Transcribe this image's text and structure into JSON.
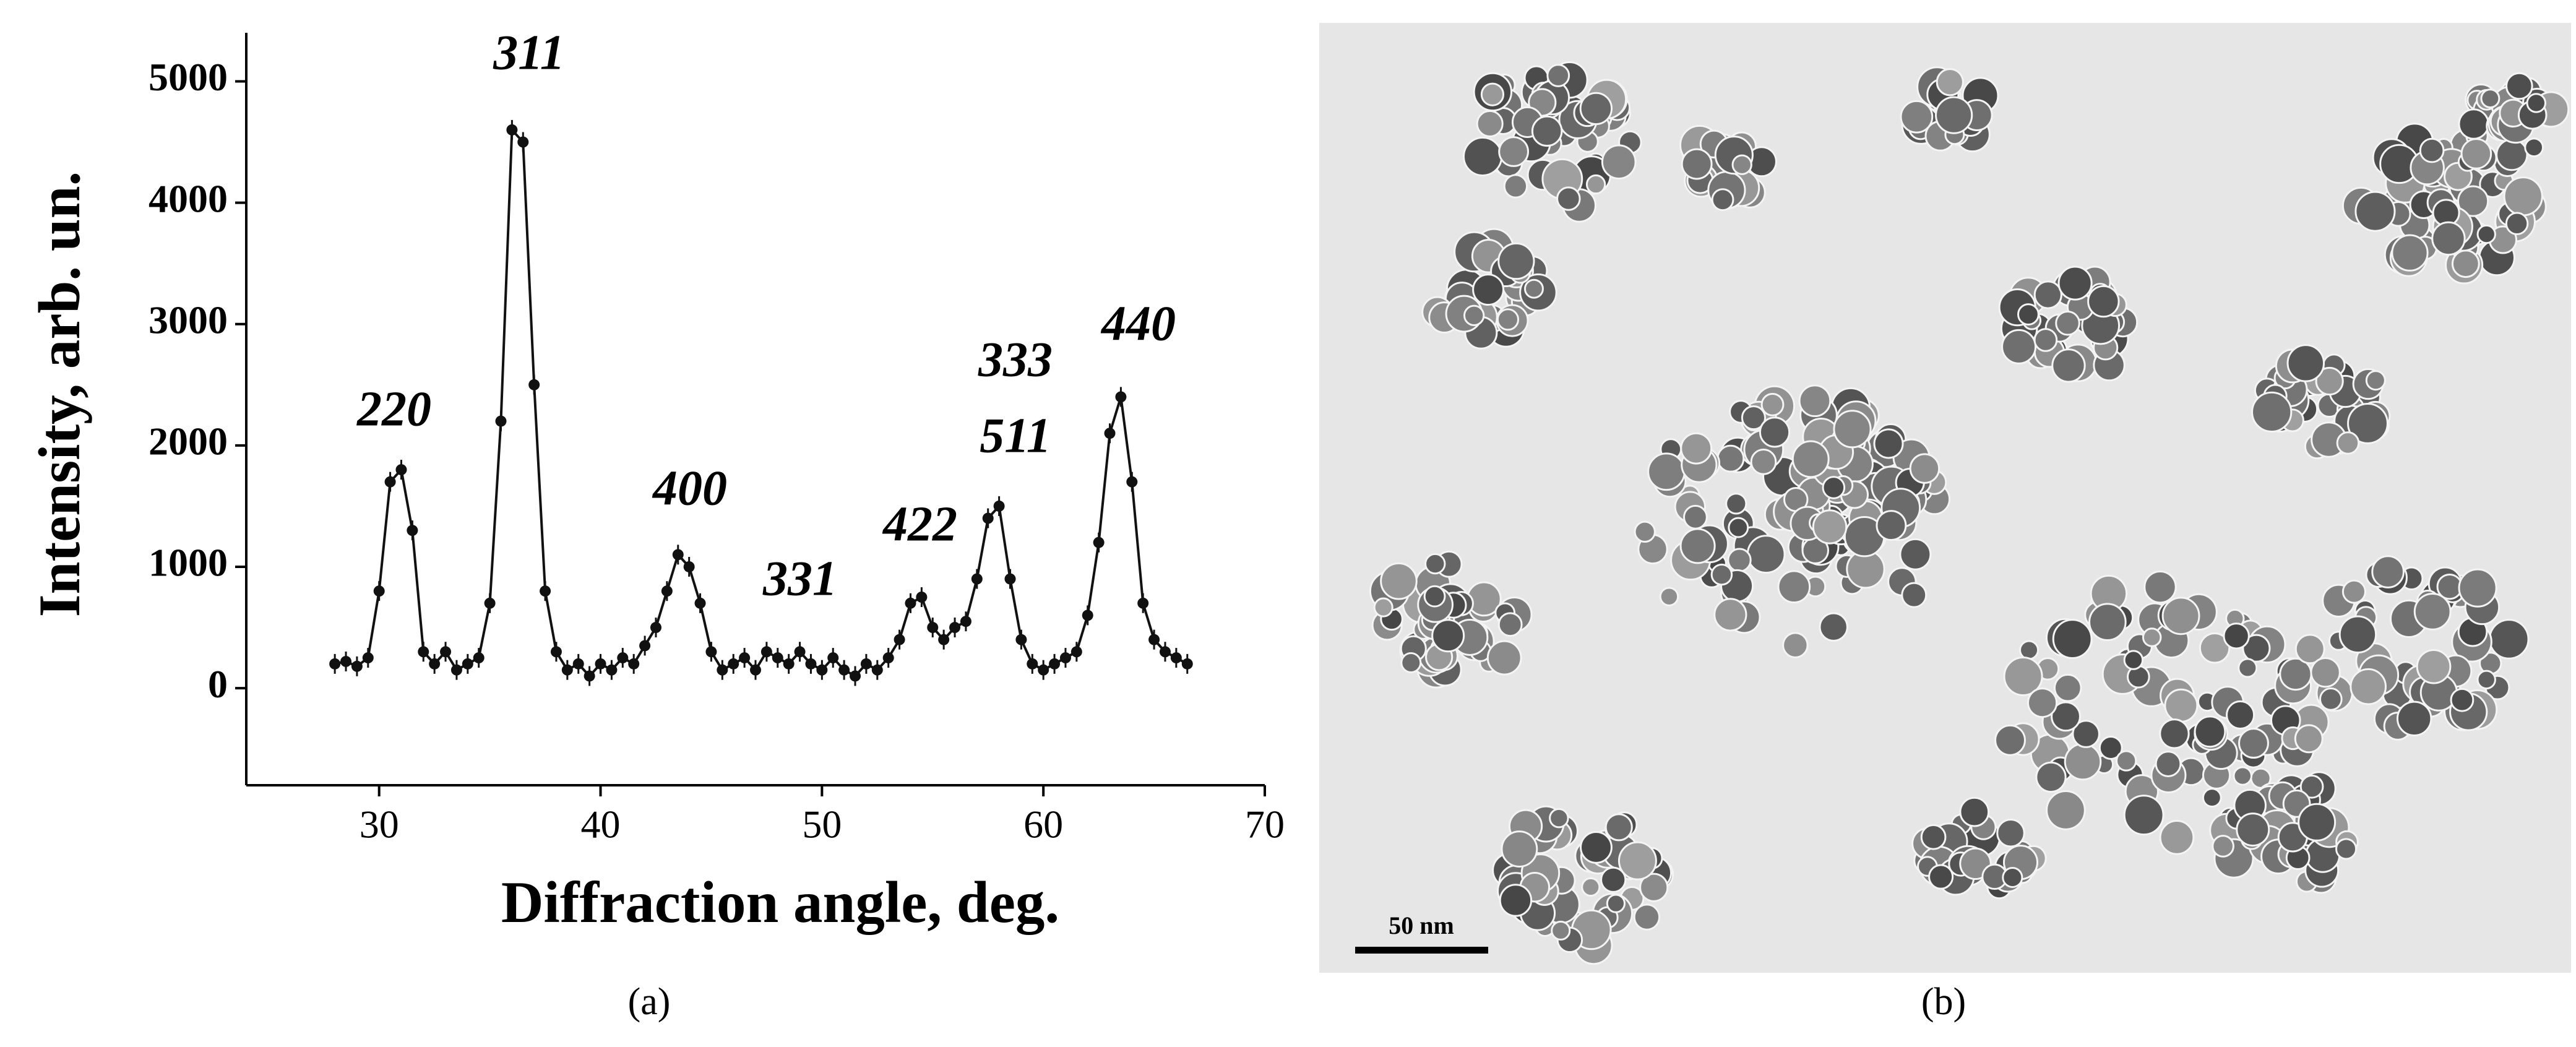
{
  "chart_data": {
    "type": "line",
    "x_label": "Diffraction angle, deg.",
    "y_label": "Intensity, arb. un.",
    "xlim": [
      24,
      70
    ],
    "xticks": [
      30,
      40,
      50,
      60,
      70
    ],
    "ylim": [
      -800,
      5400
    ],
    "yticks": [
      0,
      1000,
      2000,
      3000,
      4000,
      5000
    ],
    "color": "#111111",
    "grid": false,
    "x": [
      28,
      28.5,
      29,
      29.5,
      30,
      30.5,
      31,
      31.5,
      32,
      32.5,
      33,
      33.5,
      34,
      34.5,
      35,
      35.5,
      36,
      36.5,
      37,
      37.5,
      38,
      38.5,
      39,
      39.5,
      40,
      40.5,
      41,
      41.5,
      42,
      42.5,
      43,
      43.5,
      44,
      44.5,
      45,
      45.5,
      46,
      46.5,
      47,
      47.5,
      48,
      48.5,
      49,
      49.5,
      50,
      50.5,
      51,
      51.5,
      52,
      52.5,
      53,
      53.5,
      54,
      54.5,
      55,
      55.5,
      56,
      56.5,
      57,
      57.5,
      58,
      58.5,
      59,
      59.5,
      60,
      60.5,
      61,
      61.5,
      62,
      62.5,
      63,
      63.5,
      64,
      64.5,
      65,
      65.5,
      66,
      66.5
    ],
    "values": [
      200,
      220,
      180,
      250,
      800,
      1700,
      1800,
      1300,
      300,
      200,
      300,
      150,
      200,
      250,
      700,
      2200,
      4600,
      4500,
      2500,
      800,
      300,
      150,
      200,
      100,
      200,
      150,
      250,
      200,
      350,
      500,
      800,
      1100,
      1000,
      700,
      300,
      150,
      200,
      250,
      150,
      300,
      250,
      200,
      300,
      200,
      150,
      250,
      150,
      100,
      200,
      150,
      250,
      400,
      700,
      750,
      500,
      400,
      500,
      550,
      900,
      1400,
      1500,
      900,
      400,
      200,
      150,
      200,
      250,
      300,
      600,
      1200,
      2100,
      2400,
      1700,
      700,
      400,
      300,
      250,
      200
    ],
    "annotations": [
      "311",
      "220",
      "400",
      "331",
      "422",
      "333",
      "511",
      "440"
    ],
    "panel_label": "(a)"
  },
  "image_b": {
    "scale_bar": "50 nm",
    "panel_label": "(b)"
  }
}
